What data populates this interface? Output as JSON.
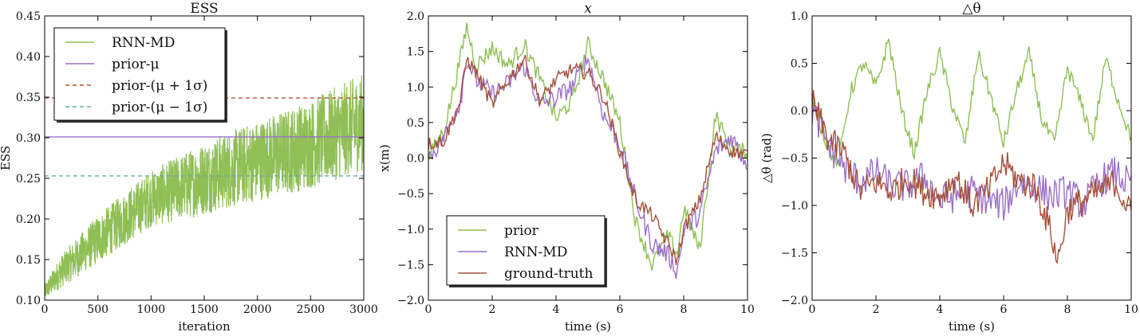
{
  "colors": {
    "green": "#8fbf55",
    "purple": "#9b6fc6",
    "brown": "#a4503a",
    "teal": "#6fa8a0",
    "red_dashed": "#b5533c"
  },
  "chart_data": [
    {
      "type": "line",
      "title": "ESS",
      "xlabel": "iteration",
      "ylabel": "ESS",
      "xlim": [
        0,
        3000
      ],
      "ylim": [
        0.1,
        0.45
      ],
      "xticks": [
        0,
        500,
        1000,
        1500,
        2000,
        2500,
        3000
      ],
      "xtick_labels": [
        "0",
        "500",
        "1000",
        "1500",
        "2000",
        "2500",
        "3000"
      ],
      "yticks": [
        0.1,
        0.15,
        0.2,
        0.25,
        0.3,
        0.35,
        0.4,
        0.45
      ],
      "ytick_labels": [
        "0.10",
        "0.15",
        "0.20",
        "0.25",
        "0.30",
        "0.35",
        "0.40",
        "0.45"
      ],
      "legend_position": "top-left",
      "legend": [
        "RNN-MD",
        "prior-μ",
        "prior-(μ + 1σ)",
        "prior-(μ − 1σ)"
      ],
      "series": [
        {
          "name": "RNN-MD",
          "style": "solid",
          "color": "green",
          "trend_x": [
            0,
            150,
            500,
            1000,
            1500,
            2000,
            2500,
            3000
          ],
          "trend_y": [
            0.11,
            0.135,
            0.175,
            0.225,
            0.25,
            0.272,
            0.292,
            0.32
          ],
          "noise_amplitude": [
            0.01,
            0.02,
            0.03,
            0.035,
            0.045,
            0.05,
            0.055,
            0.06
          ]
        },
        {
          "name": "prior-μ",
          "style": "solid",
          "color": "purple",
          "constant": 0.301
        },
        {
          "name": "prior-(μ + 1σ)",
          "style": "dashed",
          "color": "red_dashed",
          "constant": 0.349
        },
        {
          "name": "prior-(μ − 1σ)",
          "style": "dashed",
          "color": "teal",
          "constant": 0.253
        }
      ]
    },
    {
      "type": "line",
      "title": "x",
      "xlabel": "time (s)",
      "ylabel": "x(m)",
      "xlim": [
        0,
        10
      ],
      "ylim": [
        -2.0,
        2.0
      ],
      "xticks": [
        0,
        2,
        4,
        6,
        8,
        10
      ],
      "xtick_labels": [
        "0",
        "2",
        "4",
        "6",
        "8",
        "10"
      ],
      "yticks": [
        -2.0,
        -1.5,
        -1.0,
        -0.5,
        0.0,
        0.5,
        1.0,
        1.5,
        2.0
      ],
      "ytick_labels": [
        "−2.0",
        "−1.5",
        "−1.0",
        "−0.5",
        "0.0",
        "0.5",
        "1.0",
        "1.5",
        "2.0"
      ],
      "legend_position": "bottom-left",
      "legend": [
        "prior",
        "RNN-MD",
        "ground-truth"
      ],
      "series": [
        {
          "name": "prior",
          "color": "green",
          "x": [
            0,
            0.5,
            1.0,
            1.2,
            1.5,
            2.0,
            2.5,
            3.0,
            3.5,
            4.0,
            4.5,
            5.0,
            5.5,
            6.0,
            6.5,
            7.0,
            7.5,
            7.8,
            8.0,
            8.5,
            9.0,
            9.5,
            10.0
          ],
          "y": [
            0.0,
            0.4,
            1.4,
            1.85,
            1.3,
            1.55,
            1.3,
            1.6,
            1.1,
            0.55,
            0.8,
            1.6,
            1.1,
            0.5,
            -0.9,
            -1.5,
            -1.1,
            -1.35,
            -0.7,
            -1.3,
            0.6,
            0.1,
            0.1
          ],
          "noise_amplitude": 0.12
        },
        {
          "name": "RNN-MD",
          "color": "purple",
          "x": [
            0,
            0.5,
            1.0,
            1.2,
            1.5,
            2.0,
            2.5,
            3.0,
            3.5,
            4.0,
            4.5,
            5.0,
            5.5,
            6.0,
            6.5,
            7.0,
            7.5,
            7.8,
            8.0,
            8.5,
            9.0,
            9.5,
            10.0
          ],
          "y": [
            0.0,
            0.3,
            0.8,
            1.4,
            1.1,
            0.9,
            1.05,
            1.3,
            0.75,
            0.85,
            1.0,
            1.4,
            0.6,
            0.2,
            -0.6,
            -1.2,
            -1.35,
            -1.6,
            -1.0,
            -0.8,
            0.1,
            0.3,
            -0.1
          ],
          "noise_amplitude": 0.14
        },
        {
          "name": "ground-truth",
          "color": "brown",
          "x": [
            0,
            0.5,
            1.0,
            1.2,
            1.5,
            2.0,
            2.5,
            3.0,
            3.5,
            4.0,
            4.5,
            5.0,
            5.5,
            6.0,
            6.5,
            7.0,
            7.5,
            7.8,
            8.0,
            8.5,
            9.0,
            9.5,
            10.0
          ],
          "y": [
            0.2,
            0.25,
            0.8,
            1.4,
            1.2,
            0.75,
            1.1,
            1.4,
            0.8,
            1.1,
            1.25,
            1.2,
            0.85,
            0.1,
            -0.6,
            -0.8,
            -1.2,
            -1.45,
            -1.0,
            -0.6,
            0.3,
            0.1,
            0.05
          ],
          "noise_amplitude": 0.1
        }
      ]
    },
    {
      "type": "line",
      "title": "△θ",
      "xlabel": "time (s)",
      "ylabel": "△θ (rad)",
      "xlim": [
        0,
        10
      ],
      "ylim": [
        -2.0,
        1.0
      ],
      "xticks": [
        0,
        2,
        4,
        6,
        8,
        10
      ],
      "xtick_labels": [
        "0",
        "2",
        "4",
        "6",
        "8",
        "10"
      ],
      "yticks": [
        -2.0,
        -1.5,
        -1.0,
        -0.5,
        0.0,
        0.5,
        1.0
      ],
      "ytick_labels": [
        "−2.0",
        "−1.5",
        "−1.0",
        "−0.5",
        "0.0",
        "0.5",
        "1.0"
      ],
      "series": [
        {
          "name": "prior",
          "color": "green",
          "x": [
            0,
            0.4,
            0.8,
            1.2,
            1.6,
            2.0,
            2.4,
            2.8,
            3.2,
            3.6,
            4.0,
            4.4,
            4.8,
            5.2,
            5.6,
            6.0,
            6.4,
            6.8,
            7.2,
            7.6,
            8.0,
            8.4,
            8.8,
            9.2,
            9.6,
            10.0
          ],
          "y": [
            0.15,
            -0.3,
            -0.6,
            0.2,
            0.5,
            0.25,
            0.75,
            0.0,
            -0.45,
            0.2,
            0.6,
            0.05,
            -0.35,
            0.6,
            0.15,
            -0.35,
            0.2,
            0.6,
            -0.1,
            -0.35,
            0.45,
            0.1,
            -0.3,
            0.55,
            0.1,
            -0.3
          ],
          "noise_amplitude": 0.08
        },
        {
          "name": "RNN-MD",
          "color": "purple",
          "x": [
            0,
            0.5,
            1.0,
            1.5,
            2.0,
            2.5,
            3.0,
            3.5,
            4.0,
            4.5,
            5.0,
            5.5,
            6.0,
            6.5,
            7.0,
            7.5,
            8.0,
            8.5,
            9.0,
            9.5,
            10.0
          ],
          "y": [
            0.0,
            -0.35,
            -0.6,
            -0.75,
            -0.65,
            -0.8,
            -0.8,
            -0.7,
            -0.95,
            -0.9,
            -0.85,
            -0.95,
            -1.0,
            -0.75,
            -0.8,
            -0.9,
            -0.85,
            -1.0,
            -0.75,
            -0.65,
            -0.8
          ],
          "noise_amplitude": 0.18
        },
        {
          "name": "ground-truth",
          "color": "brown",
          "x": [
            0,
            0.5,
            1.0,
            1.5,
            2.0,
            2.5,
            3.0,
            3.5,
            4.0,
            4.5,
            5.0,
            5.5,
            6.0,
            6.5,
            7.0,
            7.5,
            7.7,
            8.0,
            8.5,
            9.0,
            9.5,
            10.0
          ],
          "y": [
            0.1,
            -0.3,
            -0.45,
            -0.85,
            -0.75,
            -0.85,
            -0.7,
            -0.85,
            -0.9,
            -0.7,
            -1.0,
            -0.85,
            -0.55,
            -0.75,
            -0.8,
            -1.3,
            -1.6,
            -1.05,
            -0.95,
            -0.85,
            -0.75,
            -1.1
          ],
          "noise_amplitude": 0.16
        }
      ]
    }
  ]
}
